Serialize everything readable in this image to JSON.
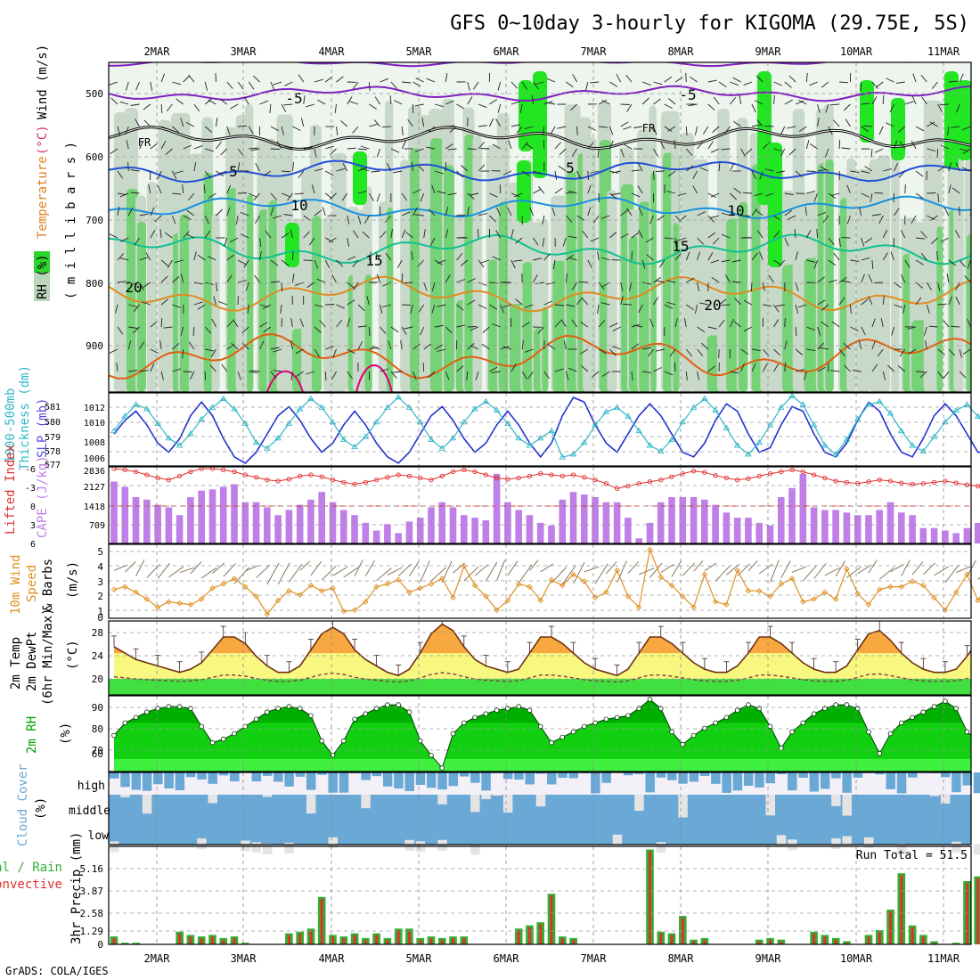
{
  "title": "GFS 0~10day 3-hourly for KIGOMA (29.75E, 5S)",
  "footer": "GrADS: COLA/IGES",
  "dates": [
    "2MAR",
    "3MAR",
    "4MAR",
    "5MAR",
    "6MAR",
    "7MAR",
    "8MAR",
    "9MAR",
    "10MAR",
    "11MAR"
  ],
  "colors": {
    "rh_light": "#c9d9c9",
    "rh_mid": "#76d276",
    "rh_bright": "#22e622",
    "cape": "#c07ee8",
    "lifted": "#e03030",
    "slp": "#2030d0",
    "thickness": "#30b8c8",
    "wind": "#e09020",
    "precip_total": "#30b030",
    "precip_conv": "#e03030",
    "cloud": "#6aa8d6",
    "rh2m": "#00a800"
  },
  "panels": {
    "profile": {
      "labels": [
        "RH (%)",
        "Temperature",
        "(°C)",
        "Wind",
        "(m/s)"
      ],
      "unit_label": "( m i l l i b a r s )",
      "yticks": [
        "500",
        "600",
        "700",
        "800",
        "900"
      ],
      "isotherm_labels": [
        "-5",
        "-5",
        "FR",
        "FR",
        "5",
        "5",
        "10",
        "10",
        "15",
        "15",
        "20",
        "20"
      ]
    },
    "slp": {
      "left_labels": [
        "1000-500mb",
        "Thickness (dm)"
      ],
      "right_label": "SLP (mb)",
      "left_ticks": [
        "581",
        "580",
        "579",
        "578",
        "577"
      ],
      "right_ticks": [
        "1012",
        "1010",
        "1008",
        "1006"
      ]
    },
    "cape": {
      "left_label": "Lifted Index",
      "right_label": "CAPE (J/kg)",
      "left_ticks": [
        "-6",
        "-3",
        "0",
        "3",
        "6"
      ],
      "right_ticks": [
        "2836",
        "2127",
        "1418",
        "709"
      ]
    },
    "wind10": {
      "labels": [
        "10m Wind",
        "Speed",
        "& Barbs"
      ],
      "unit_label": "(m/s)",
      "yticks": [
        "5",
        "4",
        "3",
        "2",
        "1",
        "0"
      ]
    },
    "temp2m": {
      "labels": [
        "2m Temp",
        "2m DewPt",
        "(6hr Min/Max)"
      ],
      "unit_label": "(°C)",
      "yticks": [
        "28",
        "24",
        "20"
      ]
    },
    "rh2m": {
      "label": "2m RH",
      "unit_label": "(%)",
      "yticks": [
        "90",
        "80",
        "70",
        "60"
      ]
    },
    "cloud": {
      "label": "Cloud Cover",
      "unit_label": "(%)",
      "levels": [
        "high",
        "middle",
        "low"
      ]
    },
    "precip": {
      "labels": [
        "Total / Rain",
        "Convective"
      ],
      "unit_label": "3hr Precip (mm)",
      "yticks": [
        "5.16",
        "3.87",
        "2.58",
        "1.29",
        "0"
      ],
      "run_total": "Run Total = 51.5"
    }
  },
  "chart_data": [
    {
      "type": "line",
      "name": "sea level pressure",
      "ylabel": "SLP (mb)",
      "ylim": [
        1005.5,
        1013.5
      ],
      "x_step_hours": 3,
      "values": [
        1009,
        1010.5,
        1011.5,
        1010,
        1008,
        1007,
        1008.5,
        1011,
        1012.5,
        1011,
        1008.5,
        1006.5,
        1005.8,
        1007,
        1009,
        1011,
        1012,
        1010.5,
        1008.5,
        1007,
        1008,
        1010,
        1011.5,
        1010,
        1008,
        1006.5,
        1005.8,
        1007,
        1009,
        1011,
        1012,
        1010.5,
        1008.5,
        1007,
        1008,
        1010,
        1011.5,
        1010,
        1008,
        1006.5,
        1008,
        1011,
        1013,
        1012.5,
        1010,
        1008,
        1007,
        1009,
        1011,
        1012.3,
        1011,
        1009,
        1007,
        1006.5,
        1008,
        1010.5,
        1012.3,
        1011.5,
        1009,
        1007,
        1007.5,
        1010,
        1012,
        1011.5,
        1009,
        1007,
        1006.5,
        1008,
        1010.5,
        1012.5,
        1011.5,
        1009,
        1007,
        1006.5,
        1008.5,
        1011,
        1012.3,
        1011,
        1009,
        1007,
        1007,
        1009,
        1011,
        1012,
        1011,
        1009,
        1007.5,
        1008.5,
        1010,
        1011
      ]
    },
    {
      "type": "line",
      "name": "1000-500mb thickness",
      "ylabel": "Thickness (dm)",
      "ylim": [
        576.6,
        581.6
      ],
      "x_step_hours": 3,
      "values": [
        579,
        580,
        580.8,
        580.5,
        579.5,
        578.5,
        578,
        578.8,
        579.8,
        580.6,
        581.2,
        580.5,
        579.5,
        578.2,
        577.8,
        578.5,
        579.5,
        580.5,
        581.2,
        580.6,
        579.6,
        578.4,
        577.9,
        578.6,
        579.6,
        580.6,
        581.3,
        580.6,
        579.6,
        578.4,
        577.8,
        578.5,
        579.6,
        580.5,
        581,
        580.4,
        579.5,
        578.5,
        578,
        578.5,
        579,
        577.2,
        577.4,
        578.2,
        579.4,
        580.3,
        580.6,
        580,
        579,
        578,
        577.6,
        578.4,
        579.6,
        580.6,
        581.2,
        580.4,
        579.2,
        578,
        577.4,
        578.2,
        579.4,
        580.6,
        581.4,
        580.8,
        579.4,
        578,
        577.4,
        578.4,
        579.8,
        580.8,
        581,
        580.2,
        579,
        578,
        577.6,
        578.6,
        579.6,
        580.4,
        580.8,
        580,
        579,
        578,
        577.8,
        578.8,
        579.6,
        580.2,
        580.6,
        579.6,
        578.4,
        577.8
      ]
    },
    {
      "type": "bar",
      "name": "CAPE",
      "ylabel": "CAPE (J/kg)",
      "ylim": [
        0,
        2836
      ],
      "x_step_hours": 3,
      "values": [
        2400,
        2200,
        1800,
        1700,
        1500,
        1400,
        1100,
        1800,
        2050,
        2100,
        2200,
        2300,
        1600,
        1600,
        1400,
        1100,
        1300,
        1500,
        1700,
        2000,
        1600,
        1300,
        1100,
        800,
        500,
        750,
        400,
        850,
        1000,
        1400,
        1600,
        1400,
        1100,
        1000,
        900,
        2700,
        1600,
        1300,
        1100,
        800,
        700,
        1700,
        2000,
        1900,
        1800,
        1600,
        1600,
        1000,
        200,
        800,
        1600,
        1800,
        1800,
        1800,
        1700,
        1500,
        1200,
        1000,
        1000,
        800,
        700,
        1800,
        2150,
        2700,
        1400,
        1300,
        1300,
        1200,
        1100,
        1100,
        1300,
        1600,
        1200,
        1100,
        600,
        600,
        500,
        400,
        600,
        800,
        800,
        1100,
        1500,
        1000,
        700,
        600,
        300,
        150,
        400,
        1100,
        1500,
        1700,
        1800,
        800,
        250,
        100,
        200
      ]
    },
    {
      "type": "line",
      "name": "Lifted Index",
      "ylabel": "Lifted Index",
      "ylim": [
        6,
        -6
      ],
      "x_step_hours": 3,
      "values": [
        -6,
        -5.8,
        -5.5,
        -5,
        -4.5,
        -4.2,
        -4.8,
        -5.5,
        -6,
        -6,
        -5.8,
        -5.5,
        -5,
        -4.6,
        -4.2,
        -4,
        -4.3,
        -4.8,
        -5,
        -4.7,
        -4.2,
        -3.8,
        -3.5,
        -3.8,
        -4.2,
        -4.6,
        -5,
        -4.8,
        -4.5,
        -4.2,
        -4.8,
        -5.5,
        -5.8,
        -5.5,
        -5,
        -4.5,
        -4.3,
        -4.5,
        -4.8,
        -5.2,
        -5,
        -4.8,
        -5,
        -4.6,
        -4.2,
        -3.6,
        -2.8,
        -3.2,
        -3.6,
        -3.9,
        -4.2,
        -4.7,
        -5.2,
        -5.6,
        -5.4,
        -4.9,
        -4.5,
        -4.2,
        -4.4,
        -4.8,
        -5.2,
        -5.5,
        -5.8,
        -5.5,
        -5,
        -4.5,
        -4,
        -3.8,
        -3.6,
        -3.9,
        -4.2,
        -4,
        -3.7,
        -3.5,
        -3.6,
        -3.8,
        -4,
        -3.7,
        -3.4,
        -3.2,
        -3.4,
        -3.6,
        -3.9,
        -4.1,
        -4,
        -3.7,
        -3.4,
        -3.2,
        -3.4,
        -3.8,
        -3.6,
        -3.2,
        -2.8,
        -2.6,
        -2.9,
        -3.3,
        -3.4
      ]
    },
    {
      "type": "line",
      "name": "10m wind speed",
      "ylabel": "(m/s)",
      "ylim": [
        0,
        5
      ],
      "x_step_hours": 3,
      "values": [
        2.1,
        2.3,
        1.9,
        1.4,
        0.8,
        1.2,
        1.1,
        1,
        1.4,
        2.2,
        2.5,
        2.9,
        2.3,
        1.6,
        0.3,
        1.3,
        2,
        1.7,
        2.4,
        2,
        2.2,
        0.5,
        0.6,
        1.2,
        2.3,
        2.5,
        2.8,
        1.9,
        2.2,
        2.5,
        2.9,
        1.5,
        3.8,
        2.4,
        1.6,
        0.6,
        1.3,
        2.5,
        2.3,
        1.3,
        2.8,
        2.4,
        3.2,
        2.7,
        1.5,
        1.9,
        3.5,
        1.6,
        0.8,
        5,
        3,
        2.4,
        1.6,
        0.8,
        3.2,
        1.2,
        1,
        3.5,
        2,
        2,
        1.6,
        2.5,
        2.9,
        1.2,
        1.4,
        1.9,
        1.4,
        3.6,
        1.8,
        1,
        2.1,
        2.3,
        2.3,
        2.7,
        2.4,
        1.5,
        0.6,
        1.9,
        3.2,
        1.3,
        2.6,
        2.5,
        1.6,
        1.2,
        2.9,
        2.1,
        1.3,
        1.4,
        1.6,
        1,
        1.8,
        2.7,
        2.5,
        1.3,
        2,
        2.2,
        1.5,
        1.5,
        2.2
      ]
    },
    {
      "type": "area",
      "name": "2m temperature",
      "ylabel": "(°C)",
      "ylim": [
        17.5,
        29
      ],
      "x_step_hours": 3,
      "values": [
        25,
        24,
        23,
        22.5,
        22,
        21.5,
        21,
        21.5,
        22.5,
        24.5,
        26.5,
        26.5,
        25.5,
        23.5,
        22,
        21,
        21,
        22,
        24.5,
        27,
        28,
        27,
        24.5,
        23,
        22,
        21,
        20.5,
        21.5,
        24,
        27,
        28.5,
        27.5,
        25,
        23,
        22,
        21.5,
        21,
        21.5,
        24,
        26.5,
        26.5,
        25.5,
        24,
        22.5,
        21.5,
        21,
        20.5,
        21.5,
        24,
        26.5,
        26.5,
        25.5,
        24,
        22.5,
        21.5,
        21,
        21,
        22,
        24,
        26.5,
        26.5,
        25.5,
        24,
        22.5,
        21.5,
        21,
        21,
        22,
        24.5,
        27,
        27.5,
        26,
        24,
        22.5,
        21.5,
        21,
        21,
        21.5,
        23.5,
        26,
        25.5,
        24.5,
        23.5,
        22.5,
        21.5,
        21,
        21,
        22,
        24,
        25,
        25.5,
        25,
        23.5,
        22,
        21.5,
        21,
        20.5,
        21,
        22.5,
        23
      ]
    },
    {
      "type": "area",
      "name": "2m relative humidity",
      "ylabel": "(%)",
      "ylim": [
        53,
        95
      ],
      "x_step_hours": 3,
      "values": [
        73,
        80,
        83,
        86,
        88,
        89,
        89,
        88,
        78,
        69,
        71,
        74,
        78,
        82,
        86,
        88,
        89,
        88,
        84,
        70,
        62,
        70,
        82,
        85,
        88,
        90,
        90,
        86,
        70,
        62,
        55,
        74,
        80,
        83,
        85,
        87,
        88,
        89,
        87,
        78,
        69,
        72,
        75,
        78,
        80,
        82,
        83,
        84,
        88,
        93,
        88,
        75,
        68,
        73,
        77,
        80,
        83,
        87,
        90,
        88,
        78,
        66,
        75,
        80,
        85,
        88,
        90,
        90,
        88,
        75,
        63,
        74,
        80,
        83,
        86,
        89,
        92,
        88,
        75,
        70,
        72,
        75,
        78,
        80,
        83,
        85,
        85,
        83,
        78,
        70,
        72,
        74,
        76,
        78,
        79,
        79,
        79,
        78,
        75
      ]
    },
    {
      "type": "bar",
      "name": "3hr precipitation",
      "ylabel": "3hr Precip (mm)",
      "ylim": [
        0,
        6.2
      ],
      "x_step_hours": 3,
      "values": [
        0.5,
        0.1,
        0.1,
        0,
        0,
        0,
        0.8,
        0.6,
        0.5,
        0.6,
        0.4,
        0.5,
        0.1,
        0,
        0,
        0,
        0.7,
        0.8,
        1,
        3,
        0.6,
        0.5,
        0.7,
        0.4,
        0.7,
        0.4,
        1,
        1,
        0.4,
        0.5,
        0.4,
        0.5,
        0.5,
        0,
        0,
        0,
        0,
        1,
        1.2,
        1.4,
        3.2,
        0.5,
        0.4,
        0,
        0,
        0,
        0,
        0,
        0,
        6,
        0.8,
        0.7,
        1.8,
        0.3,
        0.4,
        0,
        0,
        0,
        0,
        0.3,
        0.4,
        0.3,
        0,
        0,
        0.8,
        0.6,
        0.4,
        0.2,
        0,
        0.6,
        0.9,
        2.2,
        4.5,
        1.2,
        0.6,
        0.2,
        0,
        0.1,
        4,
        4.3,
        0.3,
        0.2,
        0.2,
        2.5,
        0.3,
        0.1,
        0,
        0.2,
        0.4,
        0.2,
        0.7,
        0.4,
        0.3,
        0.3,
        0,
        0.1,
        0.2,
        0.2,
        0.1,
        0.1,
        0.2
      ]
    }
  ]
}
